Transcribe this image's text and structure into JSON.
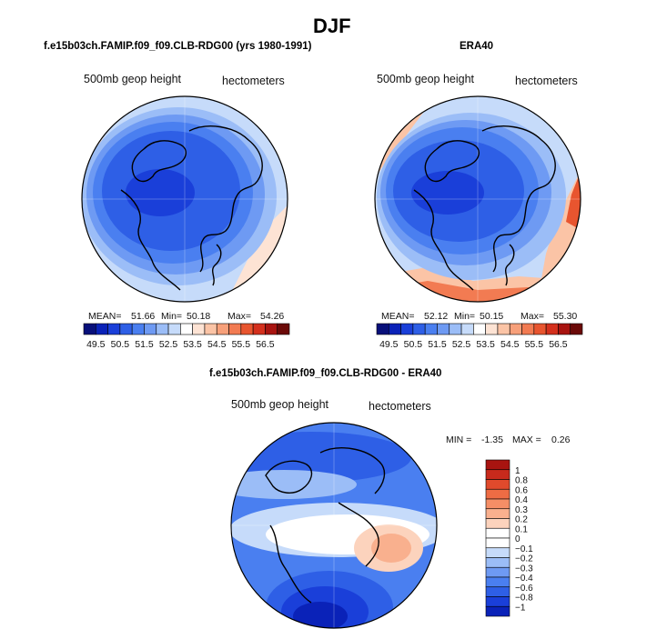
{
  "page": {
    "season_title": "DJF"
  },
  "chart_data": [
    {
      "type": "heatmap",
      "title": "f.e15b03ch.FAMIP.f09_f09.CLB-RDG00 (yrs 1980-1991)",
      "left_label": "500mb geop height",
      "right_label": "hectometers",
      "stats": {
        "mean_label": "MEAN=",
        "mean": "51.66",
        "min_label": "Min=",
        "min": "50.18",
        "max_label": "Max=",
        "max": "54.26"
      },
      "colorbar": {
        "ticks": [
          "49.5",
          "50.5",
          "51.5",
          "52.5",
          "53.5",
          "54.5",
          "55.5",
          "56.5"
        ],
        "colors": [
          "#08107a",
          "#0a22b8",
          "#1a3fd9",
          "#2e5fe6",
          "#4a7ff0",
          "#6e9af3",
          "#9bbdf7",
          "#c6dbfa",
          "#ffffff",
          "#fde3d4",
          "#fbc4a6",
          "#f7a07a",
          "#f27b52",
          "#e8552f",
          "#d4301d",
          "#a81410",
          "#6b0a08"
        ]
      },
      "bands": [
        {
          "color": "#c6dbfa"
        },
        {
          "color": "#9bbdf7"
        },
        {
          "color": "#6e9af3"
        },
        {
          "color": "#4a7ff0"
        },
        {
          "color": "#2e5fe6"
        },
        {
          "color": "#1a3fd9"
        }
      ],
      "warm_patches": [
        {
          "color": "#fde3d4"
        },
        {
          "color": "#fbc4a6"
        },
        {
          "color": "#f7a07a"
        }
      ]
    },
    {
      "type": "heatmap",
      "title": "ERA40",
      "left_label": "500mb geop height",
      "right_label": "hectometers",
      "stats": {
        "mean_label": "MEAN=",
        "mean": "52.12",
        "min_label": "Min=",
        "min": "50.15",
        "max_label": "Max=",
        "max": "55.30"
      },
      "colorbar": {
        "ticks": [
          "49.5",
          "50.5",
          "51.5",
          "52.5",
          "53.5",
          "54.5",
          "55.5",
          "56.5"
        ],
        "colors": [
          "#08107a",
          "#0a22b8",
          "#1a3fd9",
          "#2e5fe6",
          "#4a7ff0",
          "#6e9af3",
          "#9bbdf7",
          "#c6dbfa",
          "#ffffff",
          "#fde3d4",
          "#fbc4a6",
          "#f7a07a",
          "#f27b52",
          "#e8552f",
          "#d4301d",
          "#a81410",
          "#6b0a08"
        ]
      },
      "bands": [
        {
          "color": "#c6dbfa"
        },
        {
          "color": "#9bbdf7"
        },
        {
          "color": "#6e9af3"
        },
        {
          "color": "#4a7ff0"
        },
        {
          "color": "#2e5fe6"
        },
        {
          "color": "#1a3fd9"
        }
      ],
      "warm_patches": [
        {
          "color": "#fbc4a6"
        },
        {
          "color": "#f27b52"
        },
        {
          "color": "#e8552f"
        }
      ]
    },
    {
      "type": "heatmap",
      "title": "f.e15b03ch.FAMIP.f09_f09.CLB-RDG00 - ERA40",
      "left_label": "500mb geop height",
      "right_label": "hectometers",
      "stats": {
        "min_label": "MIN =",
        "min": "-1.35",
        "max_label": "MAX =",
        "max": "0.26"
      },
      "colorbar": {
        "ticks": [
          "1",
          "0.8",
          "0.6",
          "0.4",
          "0.3",
          "0.2",
          "0.1",
          "0",
          "−0.1",
          "−0.2",
          "−0.3",
          "−0.4",
          "−0.6",
          "−0.8",
          "−1"
        ],
        "colors": [
          "#a81410",
          "#c82a1c",
          "#e04a2c",
          "#ee6c44",
          "#f58e66",
          "#f9b08e",
          "#fcd3bd",
          "#ffffff",
          "#ffffff",
          "#c6dbfa",
          "#9bbdf7",
          "#6e9af3",
          "#4a7ff0",
          "#2e5fe6",
          "#1a3fd9",
          "#0a22b8"
        ]
      }
    }
  ]
}
